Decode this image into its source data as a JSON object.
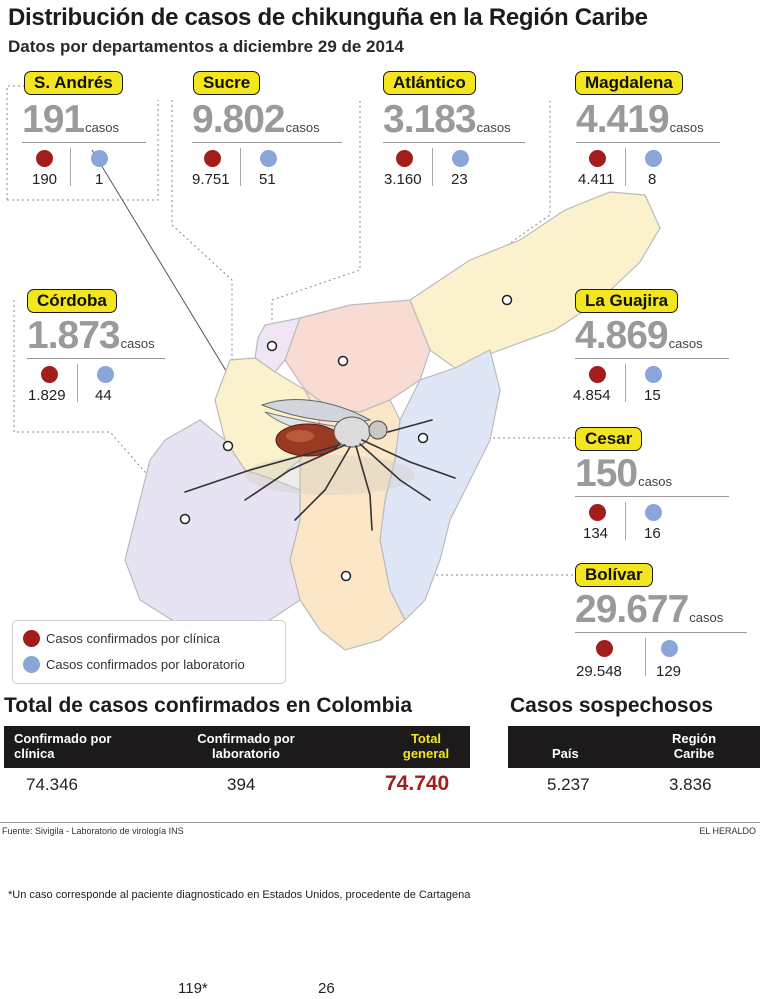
{
  "title": "Distribución de casos de chikunguña en la Región Caribe",
  "subtitle": "Datos por departamentos a diciembre 29 de 2014",
  "unit_label": "casos",
  "colors": {
    "clinica": "#a31d1d",
    "laboratorio": "#8aa5d8",
    "badge": "#f4e61e",
    "total_gray": "#9a9a9a"
  },
  "departments": [
    {
      "name": "S. Andrés",
      "total": "191",
      "clinica": "190",
      "laboratorio": "1"
    },
    {
      "name": "Sucre",
      "total": "9.802",
      "clinica": "9.751",
      "laboratorio": "51"
    },
    {
      "name": "Atlántico",
      "total": "3.183",
      "clinica": "3.160",
      "laboratorio": "23"
    },
    {
      "name": "Magdalena",
      "total": "4.419",
      "clinica": "4.411",
      "laboratorio": "8"
    },
    {
      "name": "Córdoba",
      "total": "1.873",
      "clinica": "1.829",
      "laboratorio": "44"
    },
    {
      "name": "La Guajira",
      "total": "4.869",
      "clinica": "4.854",
      "laboratorio": "15"
    },
    {
      "name": "Cesar",
      "total": "150",
      "clinica": "134",
      "laboratorio": "16"
    },
    {
      "name": "Bolívar",
      "total": "29.677",
      "clinica": "29.548",
      "laboratorio": "129"
    }
  ],
  "legend": {
    "clinica": "Casos confirmados por clínica",
    "laboratorio": "Casos confirmados por laboratorio"
  },
  "colombia": {
    "title": "Total de casos confirmados en Colombia",
    "headers": {
      "clinica": "Confirmado por clínica",
      "laboratorio": "Confirmado por laboratorio",
      "total": "Total general"
    },
    "values": {
      "clinica": "74.346",
      "laboratorio": "394",
      "total": "74.740"
    }
  },
  "sospechosos": {
    "title": "Casos sospechosos",
    "headers": {
      "pais": "País",
      "region": "Región Caribe"
    },
    "values": {
      "pais": "5.237",
      "region": "3.836"
    }
  },
  "source": "Fuente: Sivigila - Laboratorio de virología INS",
  "brand": "EL HERALDO",
  "footnote": "*Un caso corresponde al paciente diagnosticado en Estados Unidos, procedente de Cartagena",
  "extra_values": [
    "119*",
    "26"
  ]
}
